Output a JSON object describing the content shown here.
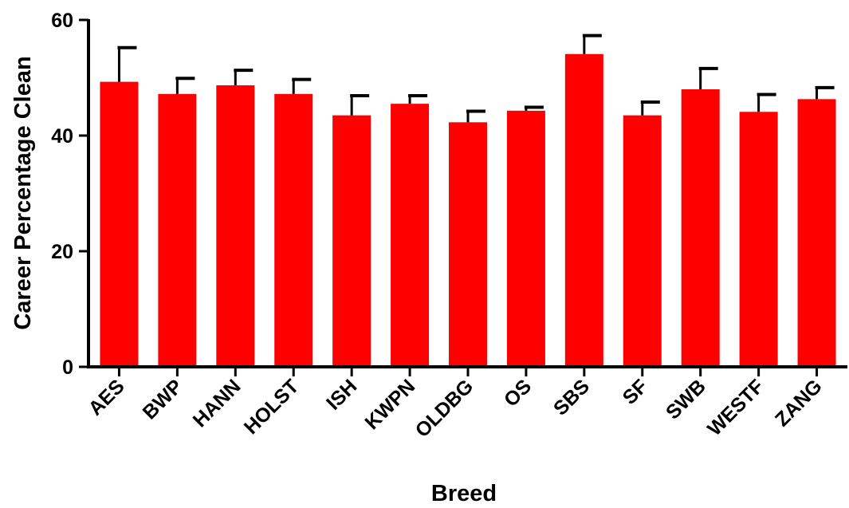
{
  "chart_data": {
    "type": "bar",
    "title": "",
    "xlabel": "Breed",
    "ylabel": "Career Percentage Clean",
    "ylim": [
      0,
      60
    ],
    "yticks": [
      "0",
      "20",
      "40",
      "60"
    ],
    "grid": false,
    "legend": "none",
    "bar_color": "#ff0000",
    "error_bar_color": "#000000",
    "categories": [
      "AES",
      "BWP",
      "HANN",
      "HOLST",
      "ISH",
      "KWPN",
      "OLDBG",
      "OS",
      "SBS",
      "SF",
      "SWB",
      "WESTF",
      "ZANG"
    ],
    "values": [
      49.3,
      47.2,
      48.7,
      47.2,
      43.5,
      45.5,
      42.3,
      44.3,
      54.1,
      43.5,
      48.0,
      44.1,
      46.3
    ],
    "error_upper": [
      55.2,
      49.9,
      51.3,
      49.7,
      46.9,
      46.9,
      44.2,
      44.9,
      57.3,
      45.8,
      51.6,
      47.1,
      48.3
    ]
  }
}
